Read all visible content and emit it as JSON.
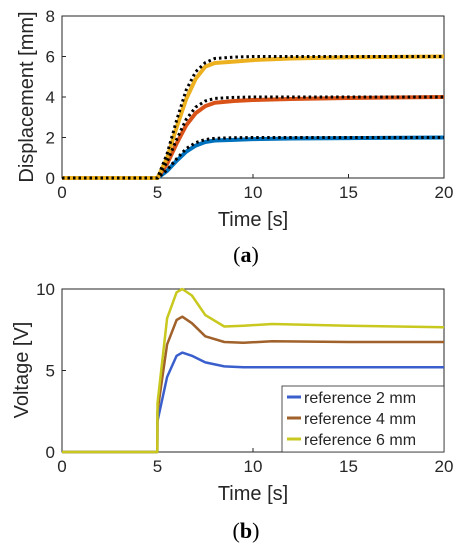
{
  "chart_data": [
    {
      "type": "line",
      "caption_letter": "a",
      "xlabel": "Time [s]",
      "ylabel": "Displacement [mm]",
      "xlim": [
        0,
        20
      ],
      "ylim": [
        0,
        8
      ],
      "xticks": [
        "0",
        "5",
        "10",
        "15",
        "20"
      ],
      "yticks": [
        "0",
        "2",
        "4",
        "6",
        "8"
      ],
      "grid": false,
      "legend": "none",
      "series": [
        {
          "color": "#0072BD",
          "style": "solid",
          "x": [
            0,
            5,
            5.5,
            6,
            6.5,
            7,
            7.5,
            8,
            9,
            10,
            12,
            15,
            20
          ],
          "y": [
            0,
            0,
            0.35,
            0.85,
            1.3,
            1.6,
            1.78,
            1.85,
            1.88,
            1.92,
            1.95,
            1.97,
            2.0
          ]
        },
        {
          "color": "#D95319",
          "style": "solid",
          "x": [
            0,
            5,
            5.5,
            6,
            6.5,
            7,
            7.5,
            8,
            9,
            10,
            12,
            15,
            20
          ],
          "y": [
            0,
            0,
            0.7,
            1.7,
            2.6,
            3.2,
            3.55,
            3.72,
            3.8,
            3.85,
            3.9,
            3.95,
            4.0
          ]
        },
        {
          "color": "#EDB120",
          "style": "solid",
          "x": [
            0,
            5,
            5.5,
            6,
            6.5,
            7,
            7.5,
            8,
            9,
            10,
            12,
            15,
            20
          ],
          "y": [
            0,
            0,
            1.0,
            2.5,
            3.9,
            4.9,
            5.5,
            5.68,
            5.75,
            5.82,
            5.9,
            5.96,
            6.0
          ]
        },
        {
          "color": "#000000",
          "style": "dotted",
          "x": [
            0,
            5,
            5.5,
            6,
            6.5,
            7,
            7.5,
            8,
            9,
            10,
            12,
            15,
            20
          ],
          "y": [
            0,
            0,
            0.4,
            0.95,
            1.45,
            1.75,
            1.9,
            1.96,
            1.99,
            2.0,
            2.0,
            2.0,
            2.0
          ]
        },
        {
          "color": "#000000",
          "style": "dotted",
          "x": [
            0,
            5,
            5.5,
            6,
            6.5,
            7,
            7.5,
            8,
            9,
            10,
            12,
            15,
            20
          ],
          "y": [
            0,
            0,
            0.8,
            1.9,
            2.9,
            3.5,
            3.8,
            3.93,
            3.98,
            4.0,
            4.0,
            4.0,
            4.0
          ]
        },
        {
          "color": "#000000",
          "style": "dotted",
          "x": [
            0,
            5,
            5.5,
            6,
            6.5,
            7,
            7.5,
            8,
            9,
            10,
            12,
            15,
            20
          ],
          "y": [
            0,
            0,
            1.2,
            2.85,
            4.35,
            5.25,
            5.7,
            5.9,
            5.97,
            6.0,
            6.0,
            6.0,
            6.0
          ]
        }
      ]
    },
    {
      "type": "line",
      "caption_letter": "b",
      "xlabel": "Time [s]",
      "ylabel": "Voltage [V]",
      "xlim": [
        0,
        20
      ],
      "ylim": [
        0,
        10
      ],
      "xticks": [
        "0",
        "5",
        "10",
        "15",
        "20"
      ],
      "yticks": [
        "0",
        "5",
        "10"
      ],
      "grid": false,
      "legend": "bottom-right",
      "series": [
        {
          "name": "reference 2 mm",
          "color": "#3A5FCD",
          "style": "solid",
          "x": [
            0,
            4.99,
            5,
            5.5,
            6,
            6.3,
            6.8,
            7.5,
            8.5,
            9.5,
            12,
            15,
            20
          ],
          "y": [
            0,
            0,
            1.9,
            4.6,
            5.9,
            6.1,
            5.9,
            5.5,
            5.25,
            5.2,
            5.2,
            5.2,
            5.2
          ]
        },
        {
          "name": "reference 4 mm",
          "color": "#A0612A",
          "style": "solid",
          "x": [
            0,
            4.99,
            5,
            5.5,
            6,
            6.3,
            6.8,
            7.5,
            8.5,
            9.5,
            11,
            15,
            20
          ],
          "y": [
            0,
            0,
            2.5,
            6.6,
            8.1,
            8.3,
            7.9,
            7.1,
            6.75,
            6.7,
            6.8,
            6.75,
            6.75
          ]
        },
        {
          "name": "reference 6 mm",
          "color": "#C8C81E",
          "style": "solid",
          "x": [
            0,
            4.99,
            5,
            5.5,
            6,
            6.3,
            6.8,
            7.5,
            8.5,
            9.5,
            11,
            15,
            20
          ],
          "y": [
            0,
            0,
            3.0,
            8.2,
            9.8,
            10.0,
            9.6,
            8.4,
            7.7,
            7.75,
            7.85,
            7.75,
            7.65
          ]
        }
      ]
    }
  ]
}
